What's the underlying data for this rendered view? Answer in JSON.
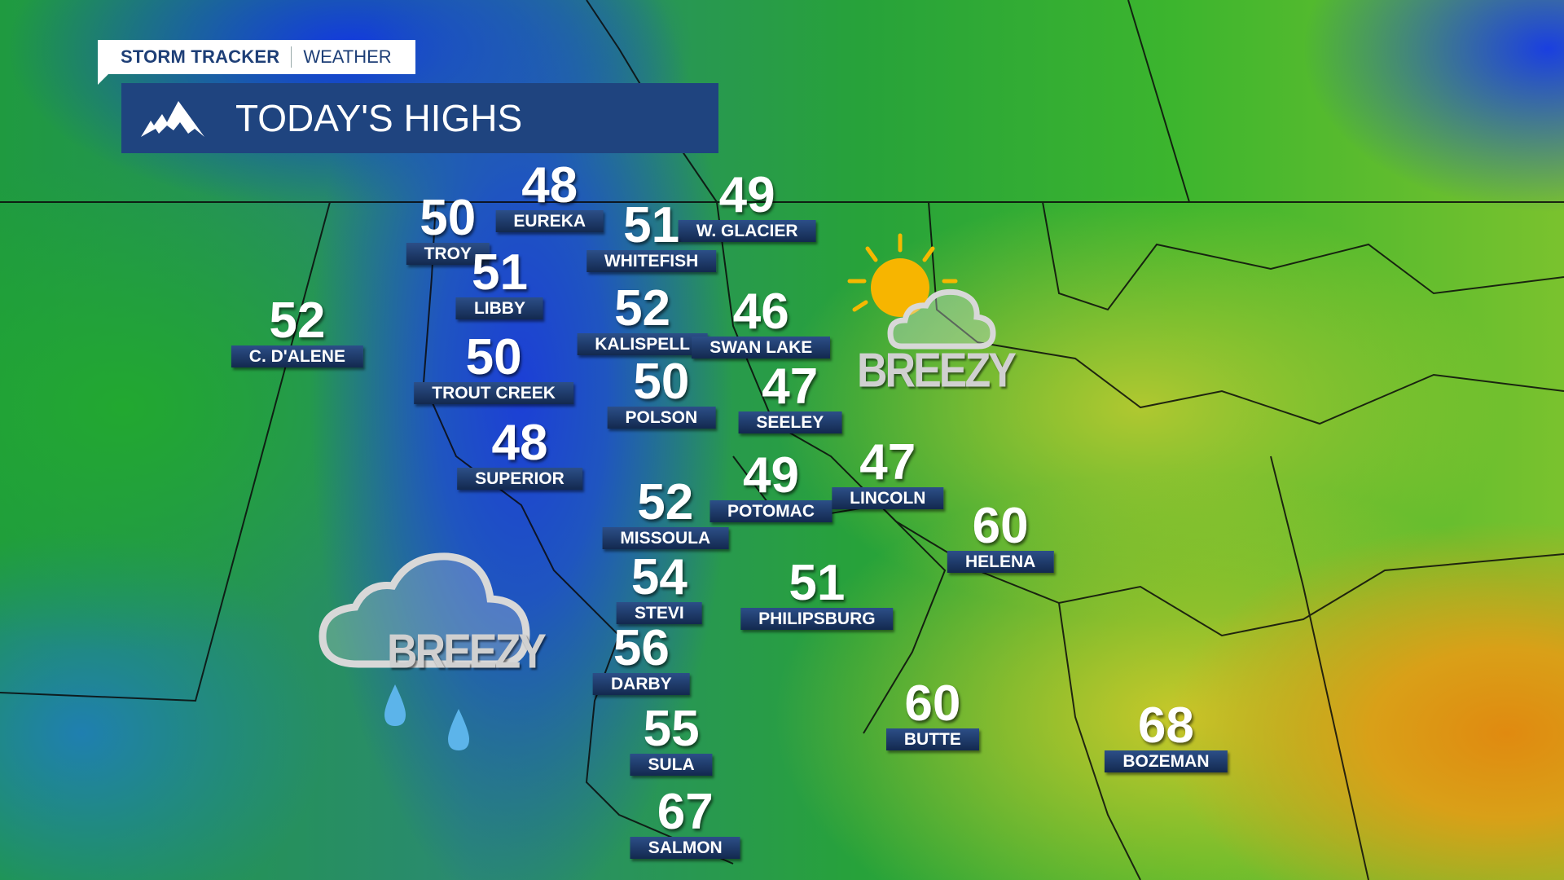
{
  "brand": {
    "name": "STORM TRACKER",
    "section": "WEATHER"
  },
  "header": {
    "title": "TODAY'S HIGHS",
    "icon": "mountain-icon"
  },
  "cities": [
    {
      "name": "EUREKA",
      "high": "48"
    },
    {
      "name": "TROY",
      "high": "50"
    },
    {
      "name": "W. GLACIER",
      "high": "49"
    },
    {
      "name": "WHITEFISH",
      "high": "51"
    },
    {
      "name": "LIBBY",
      "high": "51"
    },
    {
      "name": "C. D'ALENE",
      "high": "52"
    },
    {
      "name": "KALISPELL",
      "high": "52"
    },
    {
      "name": "SWAN LAKE",
      "high": "46"
    },
    {
      "name": "TROUT CREEK",
      "high": "50"
    },
    {
      "name": "POLSON",
      "high": "50"
    },
    {
      "name": "SEELEY",
      "high": "47"
    },
    {
      "name": "SUPERIOR",
      "high": "48"
    },
    {
      "name": "POTOMAC",
      "high": "49"
    },
    {
      "name": "LINCOLN",
      "high": "47"
    },
    {
      "name": "MISSOULA",
      "high": "52"
    },
    {
      "name": "HELENA",
      "high": "60"
    },
    {
      "name": "STEVI",
      "high": "54"
    },
    {
      "name": "PHILIPSBURG",
      "high": "51"
    },
    {
      "name": "DARBY",
      "high": "56"
    },
    {
      "name": "BUTTE",
      "high": "60"
    },
    {
      "name": "BOZEMAN",
      "high": "68"
    },
    {
      "name": "SULA",
      "high": "55"
    },
    {
      "name": "SALMON",
      "high": "67"
    }
  ],
  "conditions": [
    {
      "label": "BREEZY",
      "icon": "sun-cloud-icon"
    },
    {
      "label": "BREEZY",
      "icon": "rain-cloud-icon"
    }
  ],
  "colors": {
    "header_bg": "#1f447f",
    "brand_text": "#1e3f77",
    "label_bg": "#1d3a6b"
  }
}
